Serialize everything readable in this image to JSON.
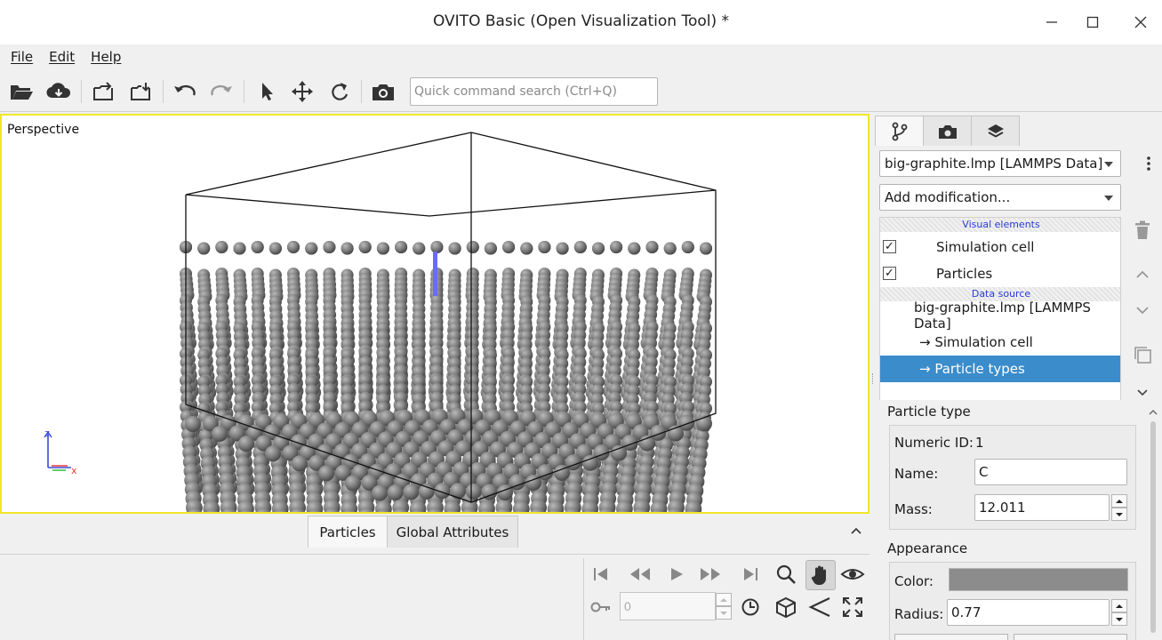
{
  "window": {
    "title": "OVITO Basic (Open Visualization Tool) *",
    "minimize_glyph": "—",
    "maximize_glyph": "☐",
    "close_glyph": "✕"
  },
  "menu": [
    "File",
    "Edit",
    "Help"
  ],
  "toolbar": {
    "icons": [
      "open-file-icon",
      "download-icon",
      "export-icon",
      "import-icon",
      "undo-icon",
      "redo-icon",
      "select-cursor-icon",
      "move-icon",
      "rotate-icon",
      "camera-icon"
    ],
    "search_placeholder": "Quick command search (Ctrl+Q)"
  },
  "viewport": {
    "caption": "Perspective",
    "axis_z": "z",
    "axis_x": "x",
    "particle_color": "#808080",
    "selection_color": "#6a6aff",
    "border_color": "#f0e62a"
  },
  "bottom_tabs": [
    "Particles",
    "Global Attributes"
  ],
  "animation": {
    "frame_value": "0"
  },
  "panel": {
    "tabs": [
      "pipeline-icon",
      "render-icon",
      "layers-icon"
    ],
    "pipeline_selector": "big-graphite.lmp [LAMMPS Data]",
    "add_modification": "Add modification...",
    "visual_elements_header": "Visual elements",
    "visual_elements": [
      {
        "label": "Simulation cell",
        "checked": true
      },
      {
        "label": "Particles",
        "checked": true
      }
    ],
    "data_source_header": "Data source",
    "data_source": {
      "file": "big-graphite.lmp [LAMMPS Data]",
      "children": [
        "→ Simulation cell",
        "→ Particle types"
      ],
      "selected_index": 1
    },
    "selection_color": "#3a8ccb"
  },
  "particle_type": {
    "group_title": "Particle type",
    "numeric_id_label": "Numeric ID:",
    "numeric_id_value": "1",
    "name_label": "Name:",
    "name_value": "C",
    "mass_label": "Mass:",
    "mass_value": "12.011"
  },
  "appearance": {
    "group_title": "Appearance",
    "color_label": "Color:",
    "color_value": "#8c8c8c",
    "radius_label": "Radius:",
    "radius_value": "0.77"
  }
}
